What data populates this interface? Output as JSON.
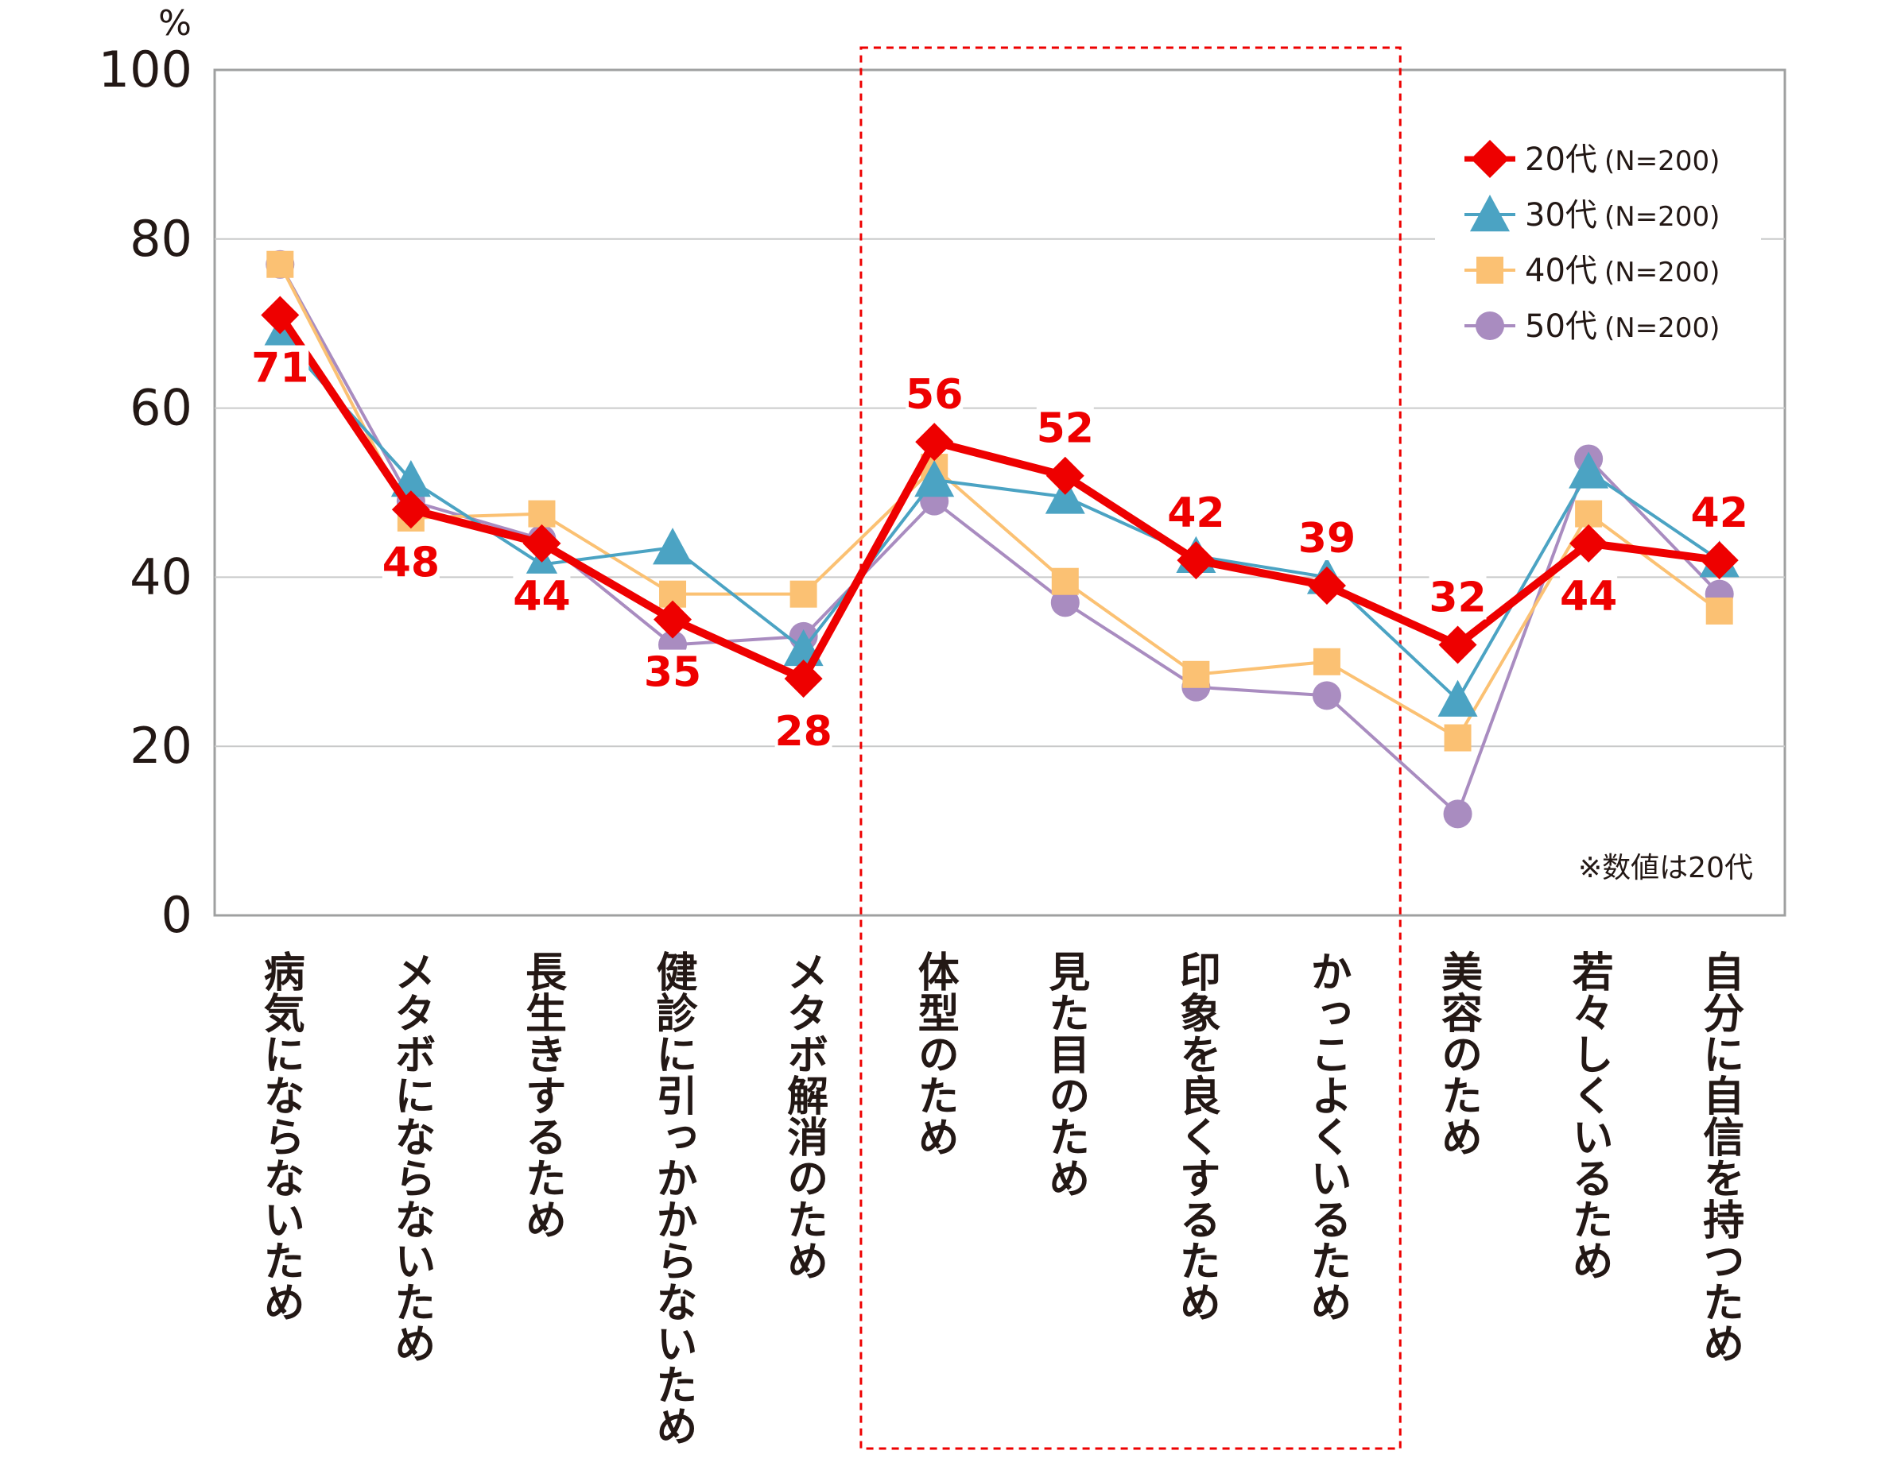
{
  "chart_data": {
    "type": "line",
    "y_unit_label": "%",
    "ylim": [
      0,
      100
    ],
    "yticks": [
      "0",
      "20",
      "40",
      "60",
      "80",
      "100"
    ],
    "categories": [
      "病気にならないため",
      "メタボにならないため",
      "長生きするため",
      "健診に引っかからないため",
      "メタボ解消のため",
      "体型のため",
      "見た目のため",
      "印象を良くするため",
      "かっこよくいるため",
      "美容のため",
      "若々しくいるため",
      "自分に自信を持つため"
    ],
    "series": [
      {
        "name": "20代",
        "n": "(N=200)",
        "color": "#ee0000",
        "marker": "diamond",
        "values": [
          71,
          48,
          44,
          35,
          28,
          56,
          52,
          42,
          39,
          32,
          44,
          42
        ]
      },
      {
        "name": "30代",
        "n": "(N=200)",
        "color": "#4ba3c3",
        "marker": "triangle",
        "values": [
          68.5,
          51.5,
          41.5,
          43.5,
          31.5,
          51.5,
          49.5,
          42.5,
          40,
          25.5,
          52.5,
          42
        ]
      },
      {
        "name": "40代",
        "n": "(N=200)",
        "color": "#fbc173",
        "marker": "square",
        "values": [
          77,
          47,
          47.5,
          38,
          38,
          53,
          39.5,
          28.5,
          30,
          21,
          47.5,
          36
        ]
      },
      {
        "name": "50代",
        "n": "(N=200)",
        "color": "#a98cc0",
        "marker": "circle",
        "values": [
          77,
          49,
          44.5,
          32,
          33,
          49,
          37,
          27,
          26,
          12,
          54,
          38
        ]
      }
    ],
    "data_labels": [
      "71",
      "48",
      "44",
      "35",
      "28",
      "56",
      "52",
      "42",
      "39",
      "32",
      "44",
      "42"
    ],
    "highlight_range": [
      "体型のため",
      "かっこよくいるため"
    ],
    "note": "※数値は20代",
    "legend_position": "top-right",
    "grid": true
  }
}
